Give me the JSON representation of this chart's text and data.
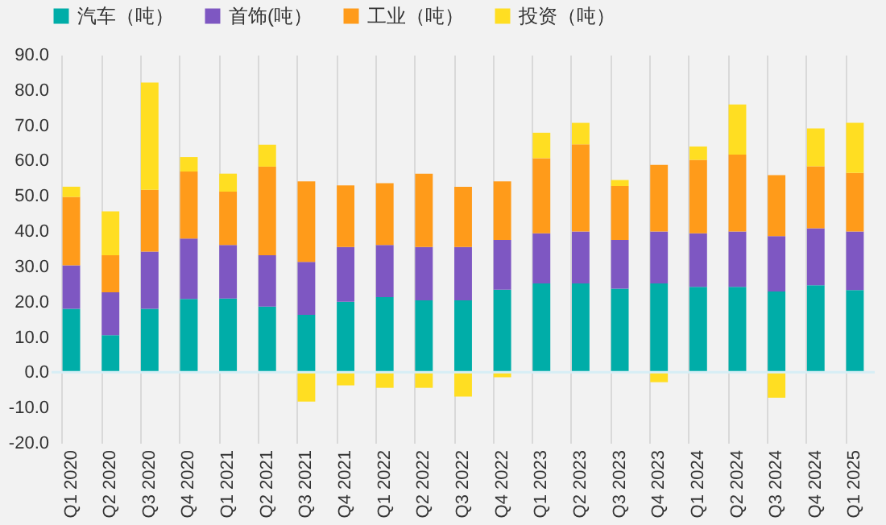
{
  "chart_data": {
    "type": "bar",
    "stacked": true,
    "categories": [
      "Q1 2020",
      "Q2 2020",
      "Q3 2020",
      "Q4 2020",
      "Q1 2021",
      "Q2 2021",
      "Q3 2021",
      "Q4 2021",
      "Q1 2022",
      "Q2 2022",
      "Q3 2022",
      "Q4 2022",
      "Q1 2023",
      "Q2 2023",
      "Q3 2023",
      "Q4 2023",
      "Q1 2024",
      "Q2 2024",
      "Q3 2024",
      "Q4 2024",
      "Q1 2025"
    ],
    "series": [
      {
        "name": "汽车（吨）",
        "color": "#00ada8",
        "values": [
          18.0,
          10.5,
          18.0,
          20.8,
          20.9,
          18.6,
          16.3,
          20.0,
          21.3,
          20.4,
          20.4,
          23.4,
          25.2,
          25.2,
          23.7,
          25.2,
          24.2,
          24.2,
          22.9,
          24.7,
          23.3
        ]
      },
      {
        "name": "首饰(吨）",
        "color": "#7e57c2",
        "values": [
          12.3,
          12.2,
          16.2,
          17.1,
          15.2,
          14.6,
          15.0,
          15.5,
          14.8,
          15.1,
          15.1,
          14.1,
          14.2,
          14.7,
          13.8,
          14.7,
          15.2,
          15.7,
          15.7,
          16.1,
          16.6
        ]
      },
      {
        "name": "工业（吨）",
        "color": "#ff9b1a",
        "values": [
          19.4,
          10.5,
          17.5,
          19.0,
          15.1,
          25.1,
          22.8,
          17.5,
          17.5,
          20.8,
          17.1,
          16.6,
          21.3,
          24.7,
          15.3,
          18.9,
          20.8,
          21.8,
          17.3,
          17.6,
          16.6
        ]
      },
      {
        "name": "投资（吨）",
        "color": "#ffde22",
        "values": [
          2.9,
          12.4,
          30.4,
          4.1,
          5.1,
          6.2,
          -8.3,
          -3.7,
          -4.4,
          -4.4,
          -6.9,
          -1.4,
          7.2,
          6.1,
          1.7,
          -2.8,
          3.8,
          14.2,
          -7.2,
          10.7,
          14.2
        ]
      }
    ],
    "ylim": [
      -20,
      90
    ],
    "yticks": [
      {
        "value": -20,
        "label": "-20.0"
      },
      {
        "value": -10,
        "label": "-10.0"
      },
      {
        "value": 0,
        "label": "0.0"
      },
      {
        "value": 10,
        "label": "10.0"
      },
      {
        "value": 20,
        "label": "20.0"
      },
      {
        "value": 30,
        "label": "30.0"
      },
      {
        "value": 40,
        "label": "40.0"
      },
      {
        "value": 50,
        "label": "50.0"
      },
      {
        "value": 60,
        "label": "60.0"
      },
      {
        "value": 70,
        "label": "70.0"
      },
      {
        "value": 80,
        "label": "80.0"
      },
      {
        "value": 90,
        "label": "90.0"
      }
    ],
    "ref_lines": [
      {
        "axis": "y",
        "value": 0,
        "color": "#d6eef5"
      }
    ],
    "grid": "x",
    "legend": "top"
  }
}
